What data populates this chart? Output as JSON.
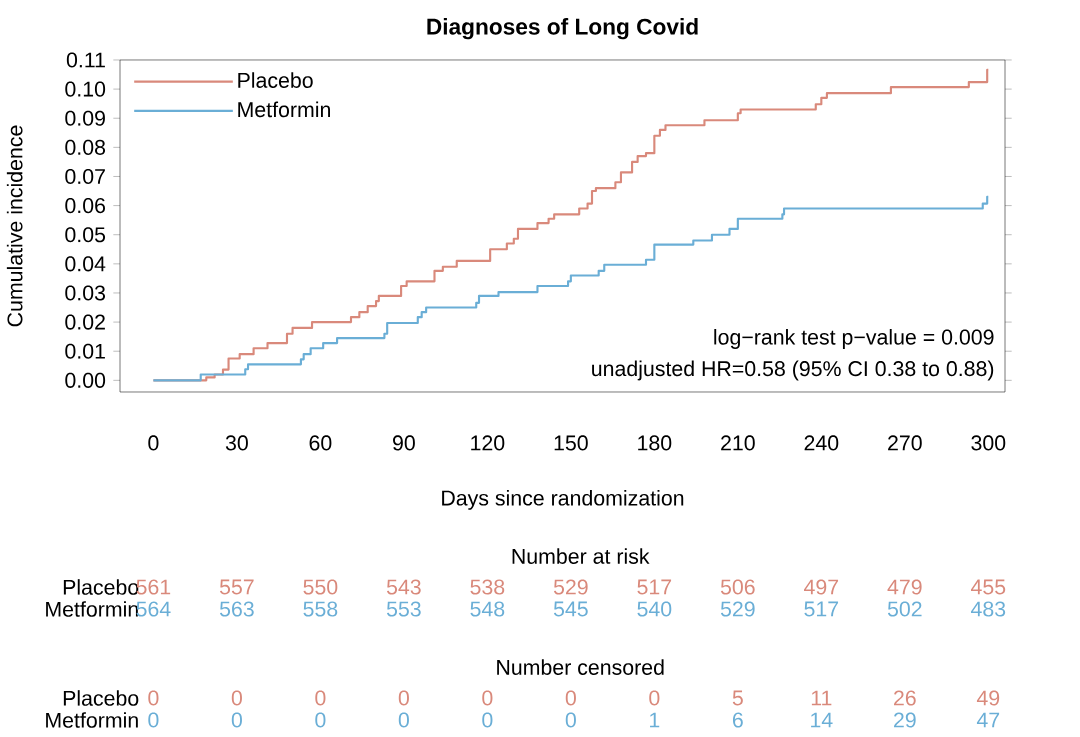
{
  "chart_data": [
    {
      "type": "step",
      "title": "Diagnoses of Long Covid",
      "xlabel": "Days since randomization",
      "ylabel": "Cumulative incidence",
      "xlim": [
        -12,
        306
      ],
      "ylim": [
        -0.004,
        0.11
      ],
      "xticks": [
        0,
        30,
        60,
        90,
        120,
        150,
        180,
        210,
        240,
        270,
        300
      ],
      "yticks": [
        {
          "value": 0,
          "label": "0.00"
        },
        {
          "value": 0.01,
          "label": "0.01"
        },
        {
          "value": 0.02,
          "label": "0.02"
        },
        {
          "value": 0.03,
          "label": "0.03"
        },
        {
          "value": 0.04,
          "label": "0.04"
        },
        {
          "value": 0.05,
          "label": "0.05"
        },
        {
          "value": 0.06,
          "label": "0.06"
        },
        {
          "value": 0.07,
          "label": "0.07"
        },
        {
          "value": 0.08,
          "label": "0.08"
        },
        {
          "value": 0.09,
          "label": "0.09"
        },
        {
          "value": 0.1,
          "label": "0.10"
        },
        {
          "value": 0.11,
          "label": "0.11"
        }
      ],
      "legend": "top left",
      "annotations": [
        "log−rank test p−value = 0.009",
        "unadjusted HR=0.58 (95% CI 0.38 to 0.88)"
      ],
      "series": [
        {
          "name": "Placebo",
          "color": "#d9897b",
          "x": [
            0,
            19,
            22,
            25,
            27,
            31,
            36,
            41,
            48,
            50,
            57,
            71,
            74,
            77,
            80,
            81,
            89,
            91,
            101,
            104,
            109,
            121,
            127,
            129.5,
            131,
            138,
            142,
            144,
            153,
            156,
            157.6,
            159,
            166,
            168,
            172,
            174,
            177,
            180,
            182,
            184,
            198,
            210,
            211,
            238,
            240,
            242,
            265,
            293,
            299.6,
            300
          ],
          "values": [
            0,
            0.001,
            0.002,
            0.0037,
            0.0075,
            0.009,
            0.011,
            0.0128,
            0.016,
            0.018,
            0.02,
            0.0217,
            0.0234,
            0.0255,
            0.0272,
            0.029,
            0.0324,
            0.034,
            0.0376,
            0.039,
            0.041,
            0.045,
            0.047,
            0.0486,
            0.052,
            0.054,
            0.0555,
            0.057,
            0.059,
            0.0607,
            0.065,
            0.066,
            0.068,
            0.0714,
            0.075,
            0.077,
            0.078,
            0.084,
            0.086,
            0.0876,
            0.0893,
            0.0917,
            0.093,
            0.0948,
            0.097,
            0.0986,
            0.1007,
            0.1024,
            0.1066,
            0.1066
          ]
        },
        {
          "name": "Metformin",
          "color": "#6aaed6",
          "x": [
            0,
            17,
            33,
            34,
            53,
            54,
            56.5,
            61,
            66,
            83,
            84,
            95,
            96.4,
            98,
            116,
            117,
            124,
            138,
            149,
            150,
            160,
            162,
            177,
            180,
            194,
            200.7,
            207,
            210,
            226,
            226.6,
            298,
            299.6,
            300
          ],
          "values": [
            0,
            0.002,
            0.0038,
            0.0055,
            0.0072,
            0.009,
            0.011,
            0.0128,
            0.0145,
            0.016,
            0.0197,
            0.0217,
            0.0234,
            0.025,
            0.0266,
            0.029,
            0.0303,
            0.0324,
            0.034,
            0.036,
            0.0376,
            0.0397,
            0.0414,
            0.0466,
            0.048,
            0.05,
            0.052,
            0.0555,
            0.057,
            0.059,
            0.0607,
            0.063,
            0.063
          ]
        }
      ]
    },
    {
      "type": "heatmap",
      "title": "Number at risk",
      "categories": [
        null,
        null,
        null,
        null,
        null,
        null,
        null,
        null,
        null,
        null,
        null
      ],
      "y_categories": [
        "Placebo",
        "Metformin"
      ],
      "data_labels": true,
      "cells": [
        [
          561,
          557,
          550,
          543,
          538,
          529,
          517,
          506,
          497,
          479,
          455
        ],
        [
          564,
          563,
          558,
          553,
          548,
          545,
          540,
          529,
          517,
          502,
          483
        ]
      ]
    },
    {
      "type": "heatmap",
      "title": "Number censored",
      "categories": [
        null,
        null,
        null,
        null,
        null,
        null,
        null,
        null,
        null,
        null,
        null
      ],
      "y_categories": [
        "Placebo",
        "Metformin"
      ],
      "data_labels": true,
      "cells": [
        [
          0,
          0,
          0,
          0,
          0,
          0,
          0,
          5,
          11,
          26,
          49
        ],
        [
          0,
          0,
          0,
          0,
          0,
          0,
          1,
          6,
          14,
          29,
          47
        ]
      ]
    }
  ]
}
